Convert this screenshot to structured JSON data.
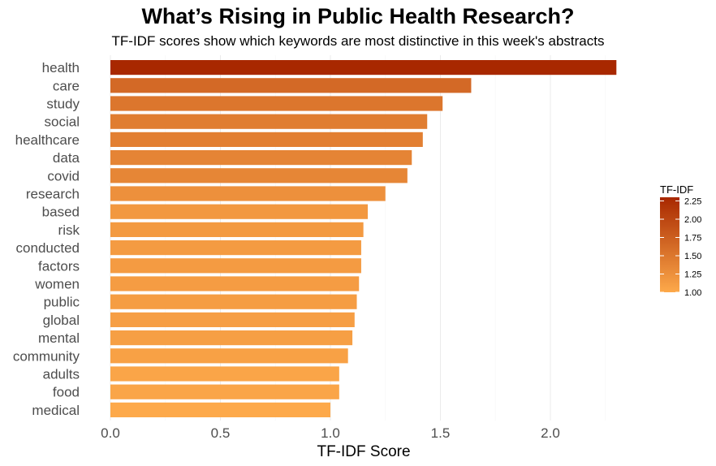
{
  "chart_data": {
    "type": "bar",
    "orientation": "horizontal",
    "title": "What’s Rising in Public Health Research?",
    "subtitle": "TF-IDF scores show which keywords are most distinctive in this week's abstracts",
    "xlabel": "TF-IDF Score",
    "ylabel": "",
    "xlim": [
      0,
      2.35
    ],
    "x_ticks": [
      "0.0",
      "0.5",
      "1.0",
      "1.5",
      "2.0"
    ],
    "x_tick_values": [
      0,
      0.5,
      1.0,
      1.5,
      2.0
    ],
    "grid": "vertical gridlines",
    "categories": [
      "health",
      "care",
      "study",
      "social",
      "healthcare",
      "data",
      "covid",
      "research",
      "based",
      "risk",
      "conducted",
      "factors",
      "women",
      "public",
      "global",
      "mental",
      "community",
      "adults",
      "food",
      "medical"
    ],
    "values": [
      2.3,
      1.64,
      1.51,
      1.44,
      1.42,
      1.37,
      1.35,
      1.25,
      1.17,
      1.15,
      1.14,
      1.14,
      1.13,
      1.12,
      1.11,
      1.1,
      1.08,
      1.04,
      1.04,
      1.0
    ],
    "legend": {
      "title": "TF-IDF",
      "position": "right",
      "ticks": [
        "2.25",
        "2.00",
        "1.75",
        "1.50",
        "1.25",
        "1.00"
      ],
      "tick_values": [
        2.25,
        2.0,
        1.75,
        1.5,
        1.25,
        1.0
      ],
      "range": [
        1.0,
        2.3
      ],
      "color_low": "#FDA94A",
      "color_high": "#A82800"
    }
  }
}
